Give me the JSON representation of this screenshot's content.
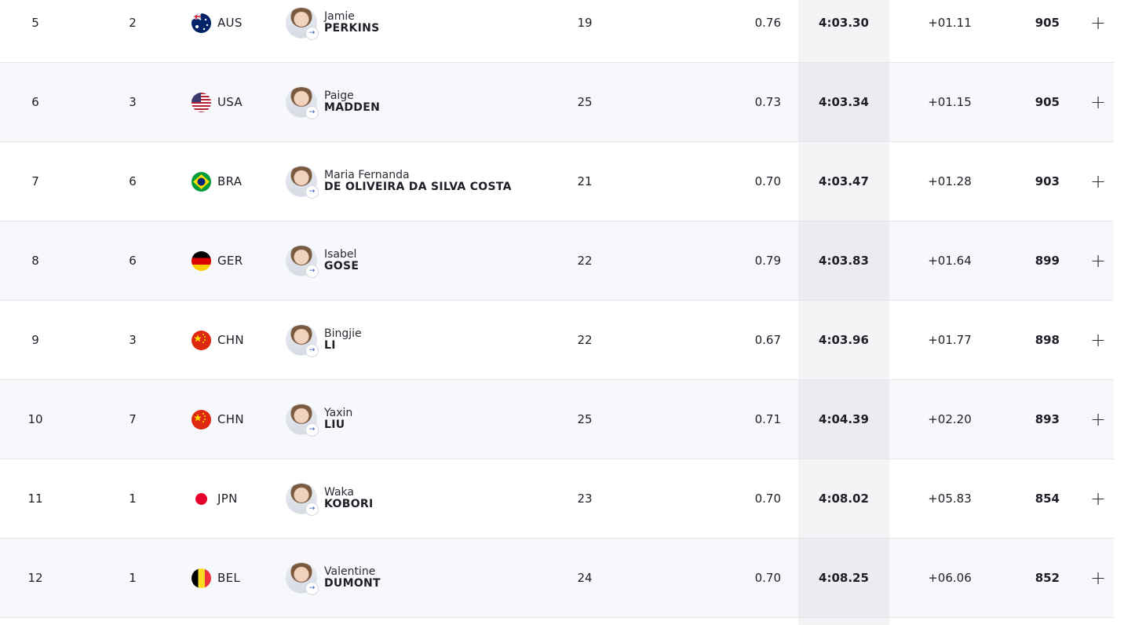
{
  "colors": {
    "row_alt": "#f6f7fa",
    "time_column_bg": "#f4f4f6",
    "divider": "#e6e6ea",
    "text": "#1e1e28"
  },
  "expand_icon": "plus-icon",
  "rows": [
    {
      "rank": "5",
      "heat_rank": "2",
      "noc": "AUS",
      "flag": "aus-flag-icon",
      "first": "Jamie",
      "last": "PERKINS",
      "age": "19",
      "reaction": "0.76",
      "time": "4:03.30",
      "behind": "+01.11",
      "points": "905"
    },
    {
      "rank": "6",
      "heat_rank": "3",
      "noc": "USA",
      "flag": "usa-flag-icon",
      "first": "Paige",
      "last": "MADDEN",
      "age": "25",
      "reaction": "0.73",
      "time": "4:03.34",
      "behind": "+01.15",
      "points": "905"
    },
    {
      "rank": "7",
      "heat_rank": "6",
      "noc": "BRA",
      "flag": "bra-flag-icon",
      "first": "Maria Fernanda",
      "last": "DE OLIVEIRA DA SILVA COSTA",
      "age": "21",
      "reaction": "0.70",
      "time": "4:03.47",
      "behind": "+01.28",
      "points": "903"
    },
    {
      "rank": "8",
      "heat_rank": "6",
      "noc": "GER",
      "flag": "ger-flag-icon",
      "first": "Isabel",
      "last": "GOSE",
      "age": "22",
      "reaction": "0.79",
      "time": "4:03.83",
      "behind": "+01.64",
      "points": "899"
    },
    {
      "rank": "9",
      "heat_rank": "3",
      "noc": "CHN",
      "flag": "chn-flag-icon",
      "first": "Bingjie",
      "last": "LI",
      "age": "22",
      "reaction": "0.67",
      "time": "4:03.96",
      "behind": "+01.77",
      "points": "898"
    },
    {
      "rank": "10",
      "heat_rank": "7",
      "noc": "CHN",
      "flag": "chn-flag-icon",
      "first": "Yaxin",
      "last": "LIU",
      "age": "25",
      "reaction": "0.71",
      "time": "4:04.39",
      "behind": "+02.20",
      "points": "893"
    },
    {
      "rank": "11",
      "heat_rank": "1",
      "noc": "JPN",
      "flag": "jpn-flag-icon",
      "first": "Waka",
      "last": "KOBORI",
      "age": "23",
      "reaction": "0.70",
      "time": "4:08.02",
      "behind": "+05.83",
      "points": "854"
    },
    {
      "rank": "12",
      "heat_rank": "1",
      "noc": "BEL",
      "flag": "bel-flag-icon",
      "first": "Valentine",
      "last": "DUMONT",
      "age": "24",
      "reaction": "0.70",
      "time": "4:08.25",
      "behind": "+06.06",
      "points": "852"
    }
  ]
}
